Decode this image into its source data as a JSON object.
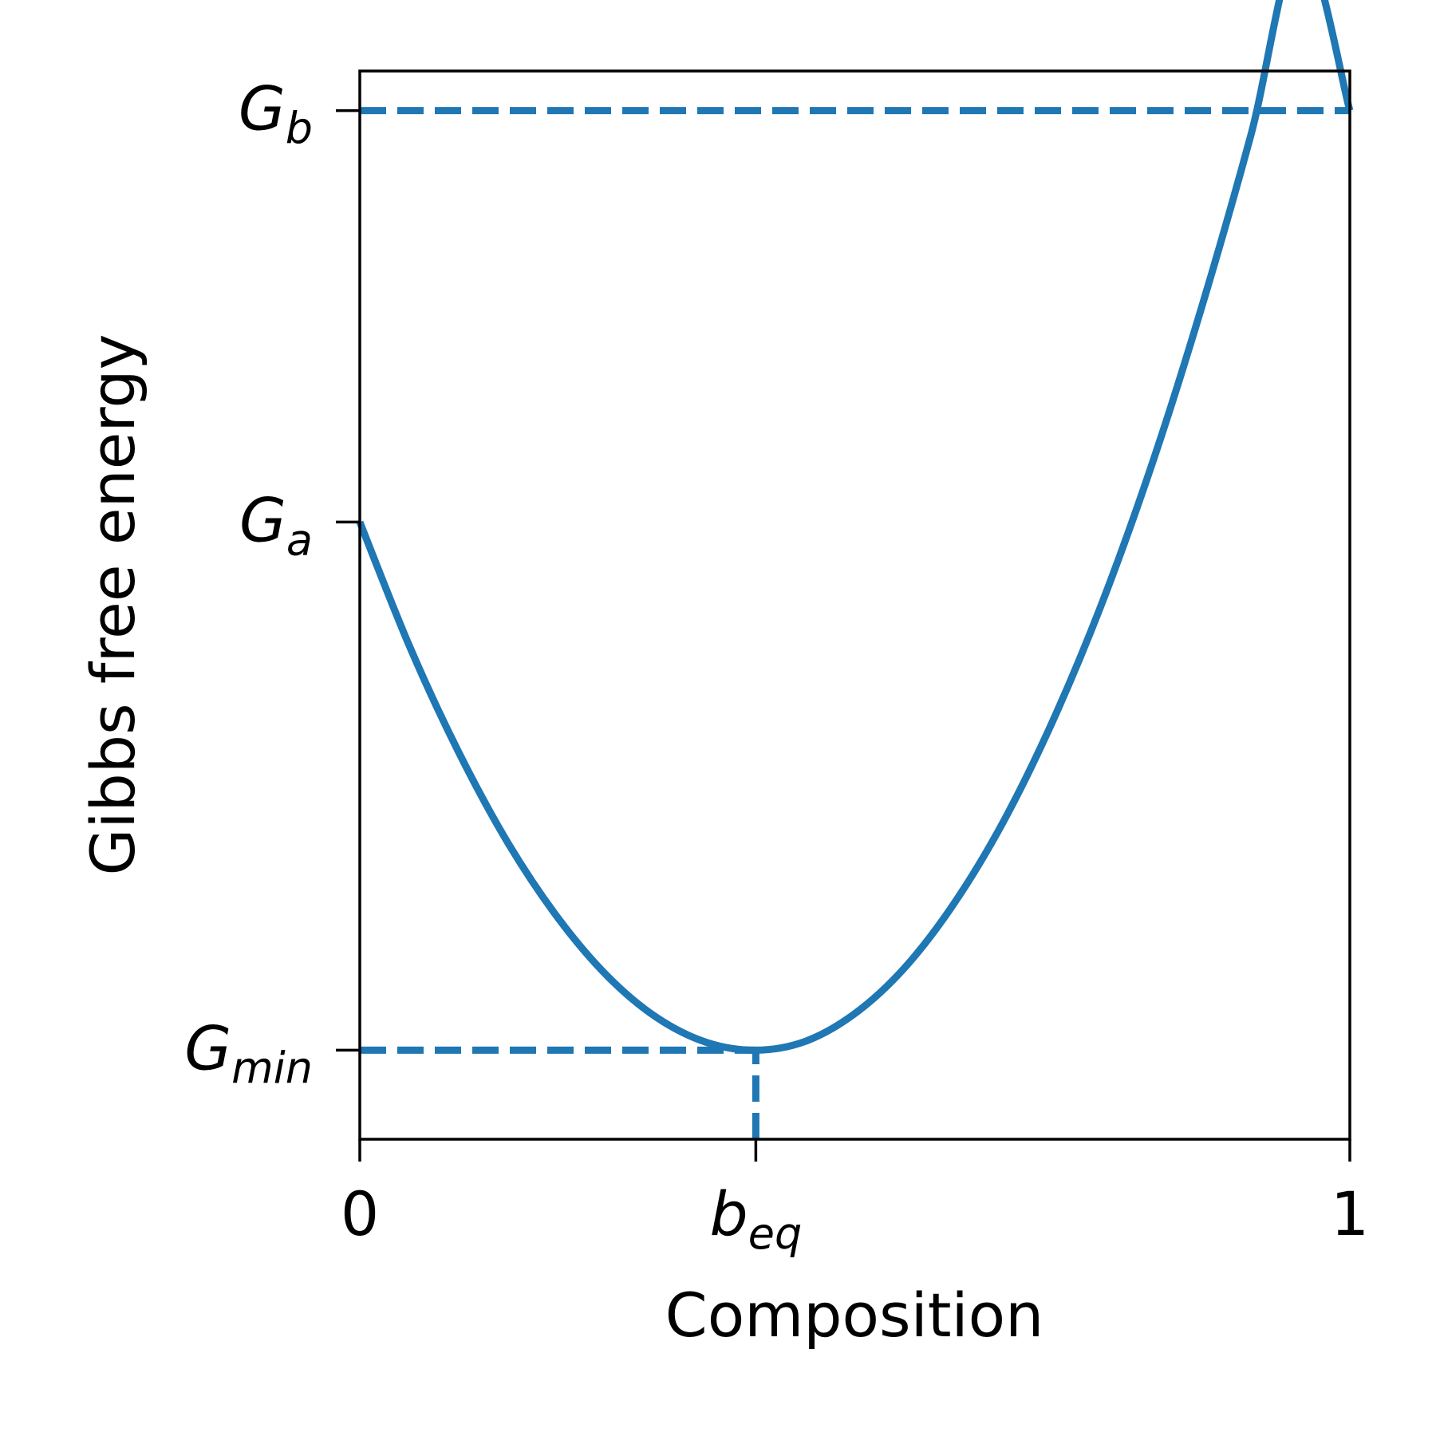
{
  "chart_data": {
    "type": "line",
    "xlabel": "Composition",
    "ylabel": "Gibbs free energy",
    "xlim": [
      0,
      1
    ],
    "ylim": [
      -0.09,
      0.99
    ],
    "grid": false,
    "x_ticks": [
      {
        "value": 0,
        "main": "0",
        "sub": ""
      },
      {
        "value": 0.4,
        "main": "b",
        "sub": "eq"
      },
      {
        "value": 1,
        "main": "1",
        "sub": ""
      }
    ],
    "y_ticks": [
      {
        "value": 0.95,
        "main": "G",
        "sub": "b"
      },
      {
        "value": 0.534,
        "main": "G",
        "sub": "a"
      },
      {
        "value": 0.0,
        "main": "G",
        "sub": "min"
      }
    ],
    "series": [
      {
        "kind": "curve",
        "color": "#1f77b4",
        "x": [
          0,
          0.05,
          0.1,
          0.15,
          0.2,
          0.25,
          0.3,
          0.35,
          0.4,
          0.45,
          0.5,
          0.55,
          0.6,
          0.65,
          0.7,
          0.75,
          0.8,
          0.85,
          0.9,
          0.95,
          1.0
        ],
        "y": [
          0.534,
          0.409,
          0.301,
          0.209,
          0.134,
          0.075,
          0.033,
          0.008,
          0.0,
          0.009,
          0.037,
          0.083,
          0.148,
          0.231,
          0.333,
          0.453,
          0.592,
          0.75,
          0.925,
          1.12,
          0.95
        ]
      }
    ],
    "reference_lines": [
      {
        "kind": "hline",
        "y": 0.95,
        "from_x": 0,
        "to_x": 1,
        "style": "dashed",
        "color": "#1f77b4"
      },
      {
        "kind": "hline",
        "y": 0.0,
        "from_x": 0,
        "to_x": 0.4,
        "style": "dashed",
        "color": "#1f77b4"
      },
      {
        "kind": "vline",
        "x": 0.4,
        "from_y": -0.09,
        "to_y": 0.0,
        "style": "dashed",
        "color": "#1f77b4"
      }
    ]
  }
}
